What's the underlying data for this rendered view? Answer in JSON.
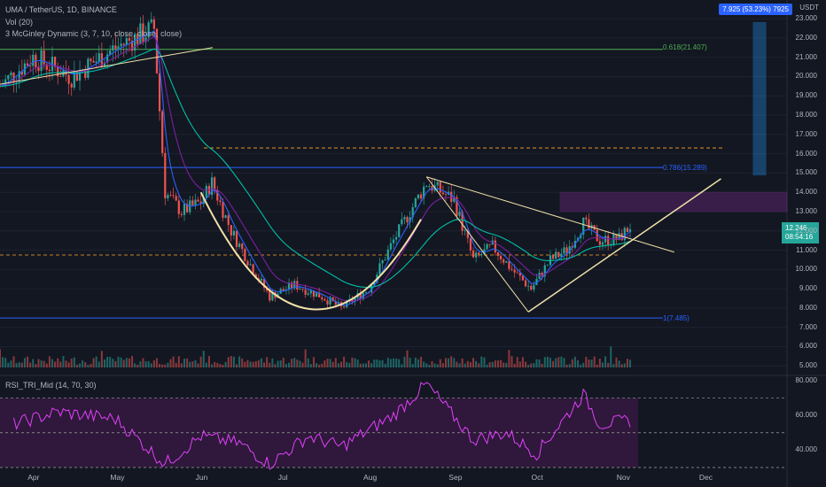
{
  "legend": {
    "symbol": "UMA / TetherUS, 1D, BINANCE",
    "volume": "Vol (20)",
    "mcginley": "3 McGinley Dynamic (3, 7, 10, close, close, close)",
    "rsi": "RSI_TRI_Mid (14, 70, 30)"
  },
  "price_scale": {
    "currency": "USDT",
    "ticks": [
      "23.000",
      "22.000",
      "21.000",
      "20.000",
      "19.000",
      "18.000",
      "17.000",
      "16.000",
      "15.000",
      "14.000",
      "13.000",
      "12.000",
      "11.000",
      "10.000",
      "9.000",
      "8.000",
      "7.000",
      "6.000",
      "5.000"
    ],
    "current_price": "12.246",
    "countdown": "08:54:16",
    "measure_box": "7.925 (53.23%) 7925"
  },
  "rsi_scale": {
    "ticks": [
      "80.000",
      "60.000",
      "40.000"
    ]
  },
  "time_axis": {
    "labels": [
      "Apr",
      "May",
      "Jun",
      "Jul",
      "Aug",
      "Sep",
      "Oct",
      "Nov",
      "Dec"
    ]
  },
  "fib": {
    "level_618": "0.618(21.407)",
    "level_786": "0.786(15.289)",
    "level_low": "1(7.485)"
  },
  "colors": {
    "background": "#131722",
    "up": "#26a69a",
    "down": "#ef5350",
    "rsi": "#e040fb",
    "pattern": "#f0e0a8",
    "fib_618": "#4caf50",
    "fib_786": "#2962ff",
    "measure": "#2196f3"
  },
  "chart_data": {
    "type": "candlestick",
    "title": "UMA / TetherUS, 1D, BINANCE",
    "ylim": [
      4.6,
      23.6
    ],
    "x_range": [
      "2021-03-20",
      "2021-12-31"
    ],
    "close_points": [
      {
        "date": "2021-03-20",
        "close": 19.5
      },
      {
        "date": "2021-04-01",
        "close": 21.0
      },
      {
        "date": "2021-04-15",
        "close": 20.0
      },
      {
        "date": "2021-05-01",
        "close": 21.5
      },
      {
        "date": "2021-05-15",
        "close": 22.5
      },
      {
        "date": "2021-05-19",
        "close": 14.0
      },
      {
        "date": "2021-05-25",
        "close": 13.0
      },
      {
        "date": "2021-06-01",
        "close": 13.5
      },
      {
        "date": "2021-06-05",
        "close": 14.5
      },
      {
        "date": "2021-06-12",
        "close": 12.0
      },
      {
        "date": "2021-06-20",
        "close": 10.0
      },
      {
        "date": "2021-06-26",
        "close": 8.6
      },
      {
        "date": "2021-07-05",
        "close": 9.2
      },
      {
        "date": "2021-07-15",
        "close": 8.6
      },
      {
        "date": "2021-07-22",
        "close": 8.0
      },
      {
        "date": "2021-08-01",
        "close": 9.0
      },
      {
        "date": "2021-08-10",
        "close": 11.5
      },
      {
        "date": "2021-08-22",
        "close": 14.5
      },
      {
        "date": "2021-09-01",
        "close": 13.6
      },
      {
        "date": "2021-09-08",
        "close": 10.5
      },
      {
        "date": "2021-09-15",
        "close": 11.2
      },
      {
        "date": "2021-09-22",
        "close": 10.0
      },
      {
        "date": "2021-09-29",
        "close": 9.0
      },
      {
        "date": "2021-10-06",
        "close": 10.5
      },
      {
        "date": "2021-10-12",
        "close": 11.0
      },
      {
        "date": "2021-10-18",
        "close": 12.4
      },
      {
        "date": "2021-10-24",
        "close": 11.5
      },
      {
        "date": "2021-10-31",
        "close": 11.6
      },
      {
        "date": "2021-11-04",
        "close": 12.25
      }
    ],
    "rsi_ylim": [
      30,
      82
    ],
    "rsi_bands": [
      30,
      50,
      70
    ],
    "rsi_points": [
      {
        "date": "2021-03-25",
        "rsi": 55
      },
      {
        "date": "2021-04-10",
        "rsi": 62
      },
      {
        "date": "2021-05-01",
        "rsi": 58
      },
      {
        "date": "2021-05-19",
        "rsi": 32
      },
      {
        "date": "2021-06-01",
        "rsi": 48
      },
      {
        "date": "2021-06-15",
        "rsi": 44
      },
      {
        "date": "2021-06-26",
        "rsi": 32
      },
      {
        "date": "2021-07-10",
        "rsi": 48
      },
      {
        "date": "2021-07-22",
        "rsi": 42
      },
      {
        "date": "2021-08-10",
        "rsi": 60
      },
      {
        "date": "2021-08-22",
        "rsi": 78
      },
      {
        "date": "2021-09-08",
        "rsi": 46
      },
      {
        "date": "2021-09-20",
        "rsi": 50
      },
      {
        "date": "2021-10-01",
        "rsi": 38
      },
      {
        "date": "2021-10-18",
        "rsi": 72
      },
      {
        "date": "2021-10-24",
        "rsi": 55
      },
      {
        "date": "2021-11-04",
        "rsi": 57
      }
    ]
  }
}
